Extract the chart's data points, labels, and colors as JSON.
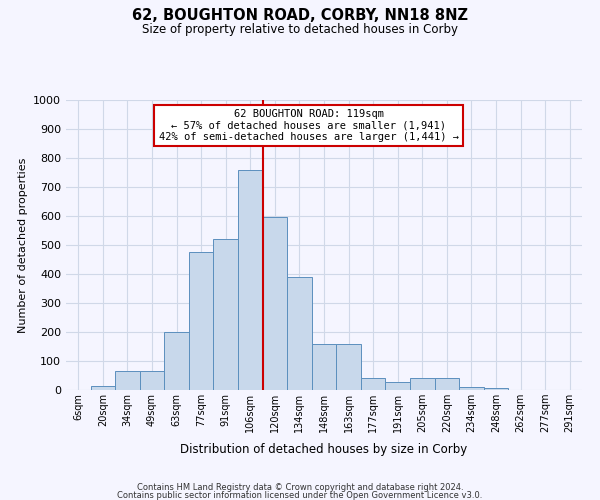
{
  "title": "62, BOUGHTON ROAD, CORBY, NN18 8NZ",
  "subtitle": "Size of property relative to detached houses in Corby",
  "xlabel": "Distribution of detached houses by size in Corby",
  "ylabel": "Number of detached properties",
  "categories": [
    "6sqm",
    "20sqm",
    "34sqm",
    "49sqm",
    "63sqm",
    "77sqm",
    "91sqm",
    "106sqm",
    "120sqm",
    "134sqm",
    "148sqm",
    "163sqm",
    "177sqm",
    "191sqm",
    "205sqm",
    "220sqm",
    "234sqm",
    "248sqm",
    "262sqm",
    "277sqm",
    "291sqm"
  ],
  "values": [
    0,
    13,
    65,
    65,
    200,
    475,
    520,
    760,
    595,
    390,
    160,
    160,
    40,
    27,
    42,
    42,
    10,
    7,
    0,
    0,
    0
  ],
  "bar_color": "#c8d8eb",
  "bar_edge_color": "#5b8fbe",
  "vline_color": "#cc0000",
  "annotation_text": "62 BOUGHTON ROAD: 119sqm\n← 57% of detached houses are smaller (1,941)\n42% of semi-detached houses are larger (1,441) →",
  "annotation_box_color": "#ffffff",
  "annotation_box_edge": "#cc0000",
  "ylim": [
    0,
    1000
  ],
  "yticks": [
    0,
    100,
    200,
    300,
    400,
    500,
    600,
    700,
    800,
    900,
    1000
  ],
  "footer1": "Contains HM Land Registry data © Crown copyright and database right 2024.",
  "footer2": "Contains public sector information licensed under the Open Government Licence v3.0.",
  "bg_color": "#f5f5ff",
  "grid_color": "#d0d8e8"
}
